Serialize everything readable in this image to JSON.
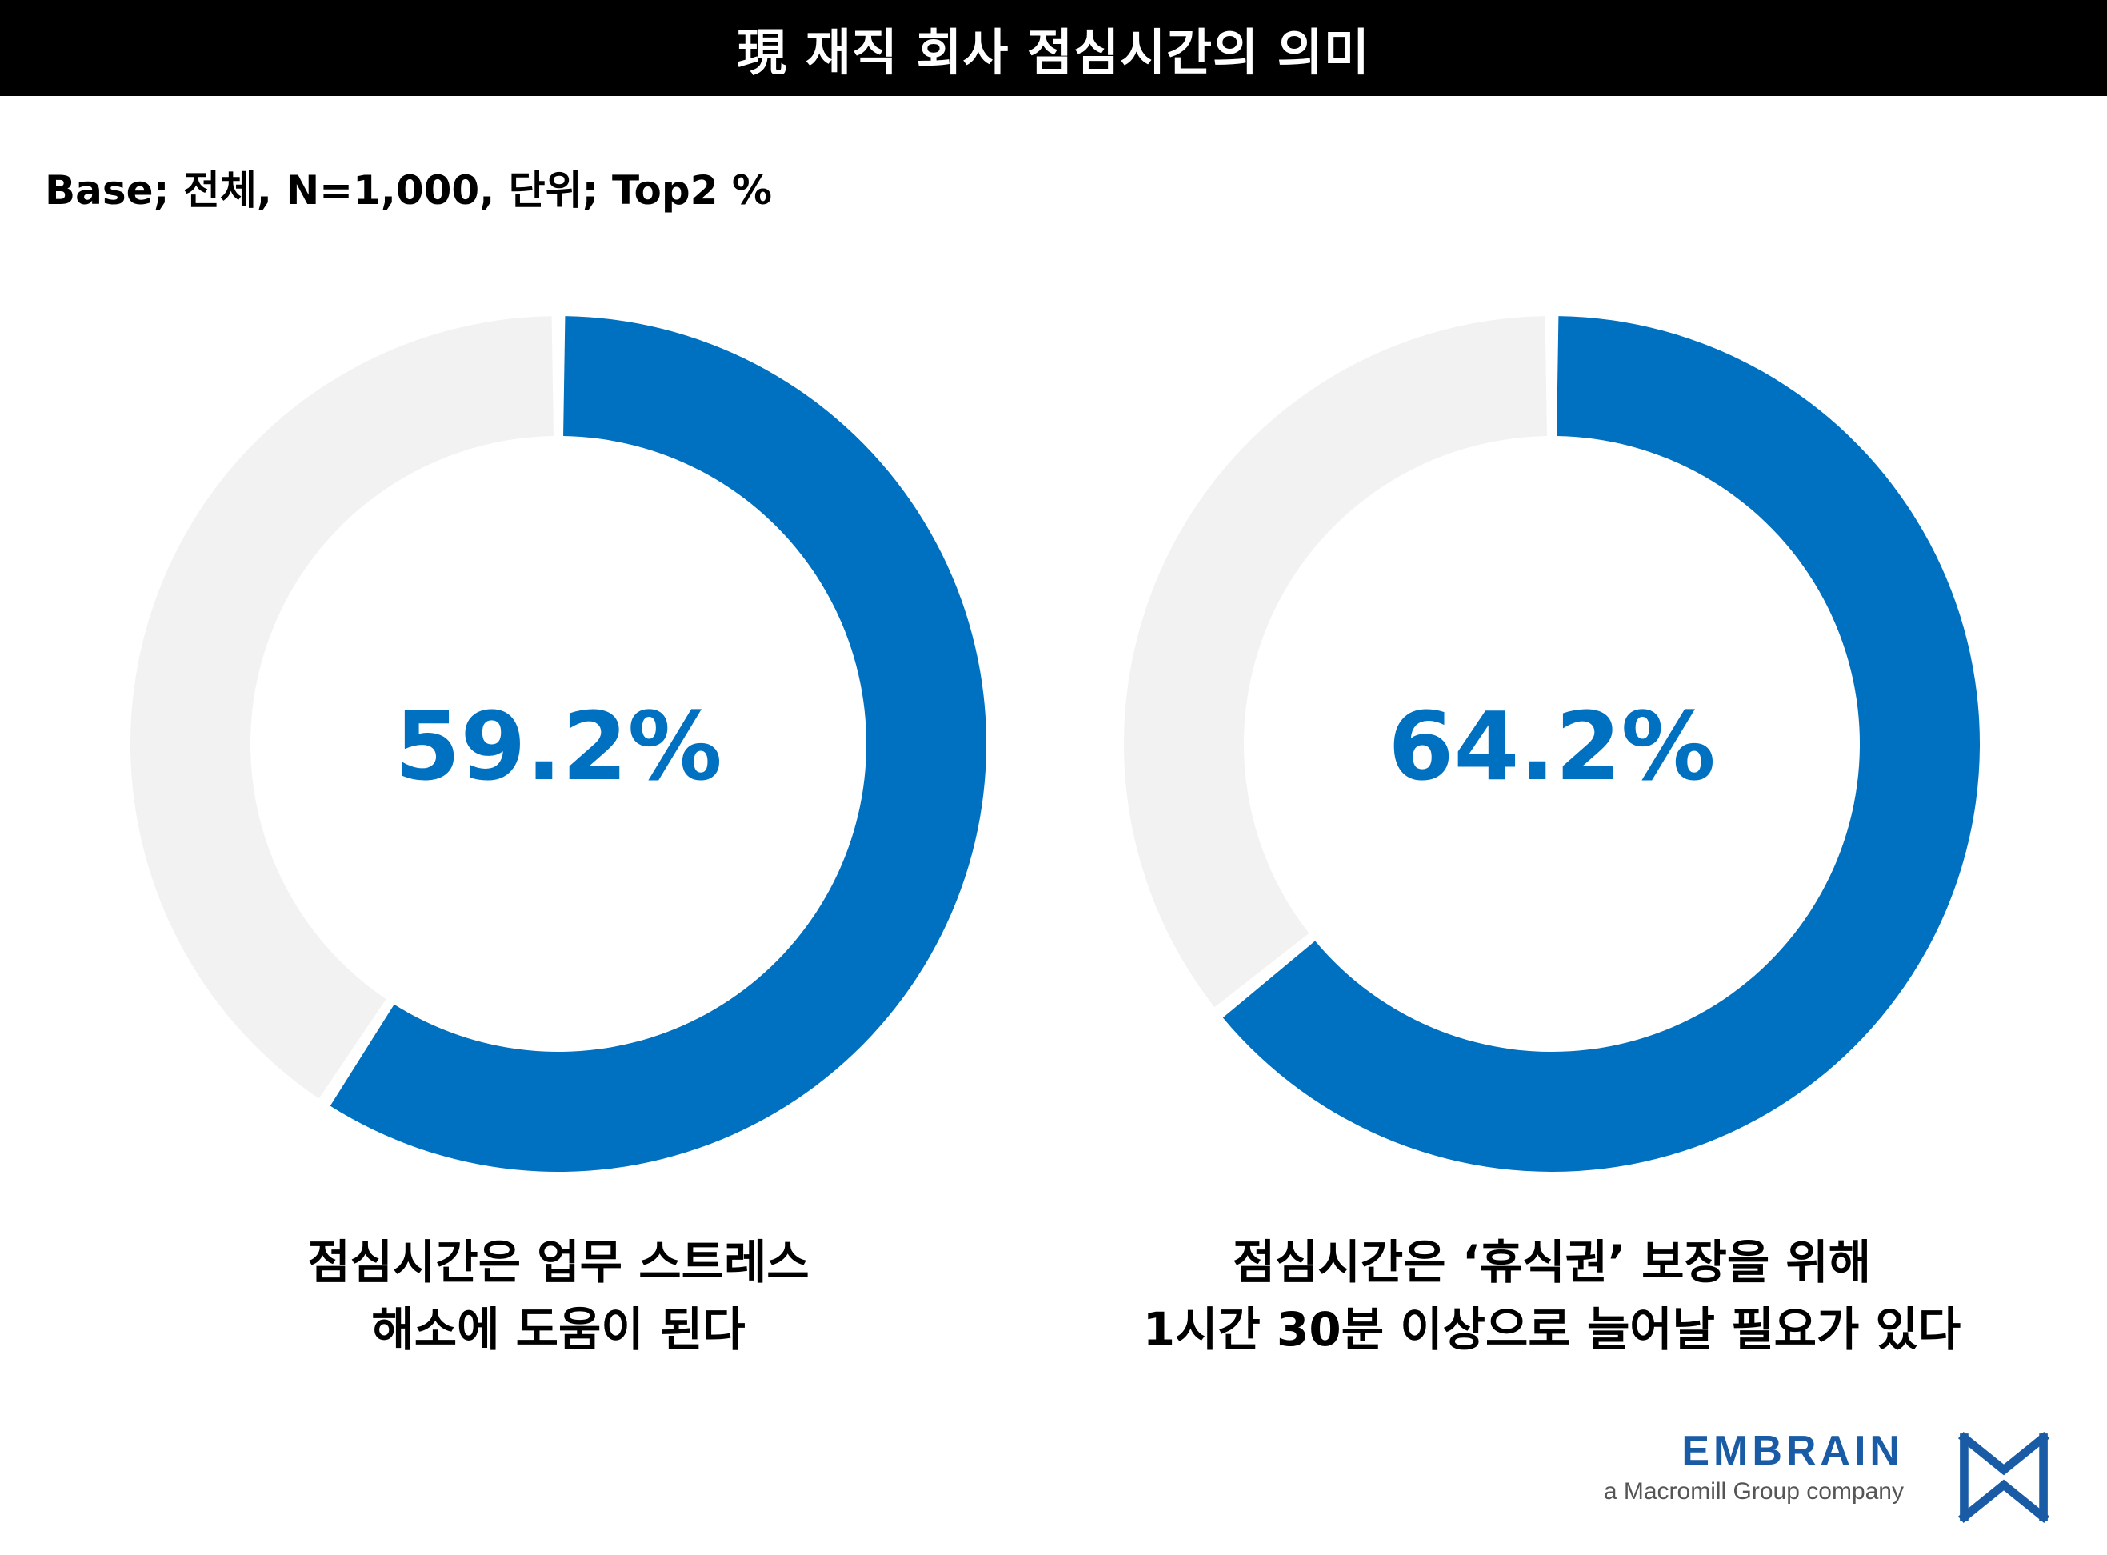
{
  "header": {
    "title": "現 재직 회사 점심시간의 의미"
  },
  "base_note": "Base; 전체, N=1,000, 단위; Top2 %",
  "colors": {
    "accent": "#0070c0",
    "track": "#f2f2f2",
    "logo": "#1a5ba6"
  },
  "chart_data": [
    {
      "type": "pie",
      "variant": "donut",
      "value": 59.2,
      "remainder": 40.8,
      "center_label": "59.2%",
      "caption_lines": [
        "점심시간은 업무 스트레스",
        "해소에 도움이 된다"
      ]
    },
    {
      "type": "pie",
      "variant": "donut",
      "value": 64.2,
      "remainder": 35.8,
      "center_label": "64.2%",
      "caption_lines": [
        "점심시간은 ‘휴식권’ 보장을 위해",
        "1시간 30분 이상으로 늘어날 필요가 있다"
      ]
    }
  ],
  "logo": {
    "brand": "EMBRAIN",
    "tagline": "a Macromill Group company",
    "icon": "embrain-arrows-icon"
  }
}
